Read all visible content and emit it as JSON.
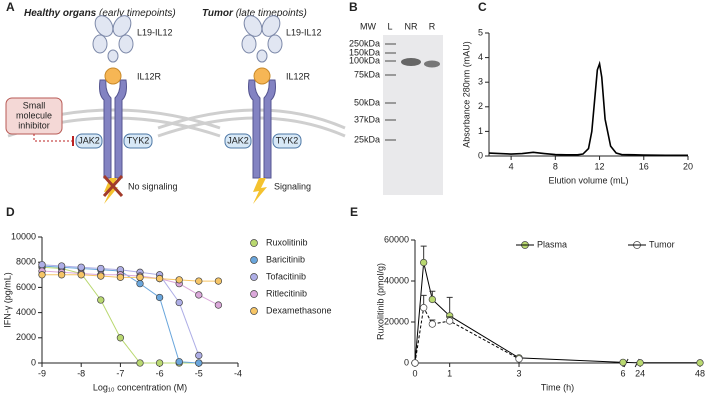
{
  "panel_labels": [
    "A",
    "B",
    "C",
    "D",
    "E"
  ],
  "diagram": {
    "left": {
      "title": "Healthy organs",
      "subtitle": "(early timepoints)",
      "ligand": "L19-IL12",
      "receptor": "IL12R",
      "inhibitor": [
        "Small",
        "molecule",
        "inhibitor"
      ],
      "kinases": [
        "JAK2",
        "TYK2"
      ],
      "outcome": "No signaling"
    },
    "right": {
      "title": "Tumor",
      "subtitle": "(late timepoints)",
      "ligand": "L19-IL12",
      "receptor": "IL12R",
      "kinases": [
        "JAK2",
        "TYK2"
      ],
      "outcome": "Signaling"
    }
  },
  "gel": {
    "mw_header": "MW",
    "lanes": [
      "L",
      "NR",
      "R"
    ],
    "markers": [
      "250kDa",
      "150kDa",
      "100kDa",
      "75kDa",
      "50kDa",
      "37kDa",
      "25kDa"
    ]
  },
  "chart_data": [
    {
      "type": "line",
      "x_label": "Elution volume (mL)",
      "y_label": "Absorbance 280nm (mAU)",
      "x": [
        2,
        3,
        4,
        5,
        6,
        7,
        8,
        9,
        10,
        10.5,
        11,
        11.3,
        11.6,
        11.8,
        12,
        12.2,
        12.5,
        13,
        13.5,
        14,
        16,
        18,
        20
      ],
      "series": [
        {
          "color": "#000000",
          "values": [
            0.12,
            0.1,
            0.08,
            0.1,
            0.15,
            0.1,
            0.06,
            0.05,
            0.05,
            0.08,
            0.3,
            1.0,
            2.5,
            3.5,
            3.75,
            3.2,
            1.5,
            0.4,
            0.12,
            0.06,
            0.04,
            0.03,
            0.03
          ]
        }
      ],
      "xlim": [
        2,
        20
      ],
      "xticks": [
        4,
        8,
        12,
        16,
        20
      ],
      "ylim": [
        0,
        5
      ],
      "yticks": [
        0,
        1,
        2,
        3,
        4,
        5
      ]
    },
    {
      "type": "line",
      "x_label": "Log₁₀ concentration (M)",
      "y_label": "IFN-γ (pg/mL)",
      "markers": true,
      "legend": "right",
      "x": [
        -9,
        -8.5,
        -8,
        -7.5,
        -7,
        -6.5,
        -6,
        -5.5,
        -5,
        -4.5
      ],
      "series": [
        {
          "name": "Ruxolitinib",
          "color": "#b9d870",
          "values": [
            7600,
            7500,
            7100,
            5000,
            2000,
            0,
            0,
            0,
            0,
            null
          ]
        },
        {
          "name": "Baricitinib",
          "color": "#6aa6dc",
          "values": [
            7700,
            7600,
            7500,
            7400,
            7300,
            6300,
            5200,
            100,
            0,
            null
          ]
        },
        {
          "name": "Tofacitinib",
          "color": "#aeaee6",
          "values": [
            7800,
            7700,
            7600,
            7500,
            7400,
            7200,
            7000,
            4800,
            600,
            null
          ]
        },
        {
          "name": "Ritlecitinib",
          "color": "#dba8da",
          "values": [
            7300,
            7200,
            7100,
            7000,
            7000,
            6900,
            6700,
            6300,
            5400,
            4600
          ]
        },
        {
          "name": "Dexamethasone",
          "color": "#f6c566",
          "values": [
            7000,
            7000,
            7000,
            6900,
            6800,
            6800,
            6700,
            6600,
            6500,
            6500
          ]
        }
      ],
      "xlim": [
        -9,
        -4
      ],
      "xticks": [
        -9,
        -8,
        -7,
        -6,
        -5,
        -4
      ],
      "ylim": [
        0,
        10000
      ],
      "yticks": [
        0,
        2000,
        4000,
        6000,
        8000,
        10000
      ]
    },
    {
      "type": "line",
      "x_label": "Time (h)",
      "y_label": "Ruxolitinib (pmol/g)",
      "markers": true,
      "legend": "top",
      "x_break": [
        6,
        24
      ],
      "x": [
        0,
        0.25,
        0.5,
        1,
        3,
        6,
        24,
        48
      ],
      "series": [
        {
          "name": "Plasma",
          "color": "#b9d870",
          "line_color": "#000000",
          "values": [
            0,
            49000,
            31000,
            23000,
            2500,
            300,
            100,
            100
          ],
          "errors": [
            0,
            8000,
            4000,
            9000,
            500,
            null,
            null,
            null
          ]
        },
        {
          "name": "Tumor",
          "color": "#ffffff",
          "line_color": "#000000",
          "dash": true,
          "values": [
            0,
            27000,
            19000,
            20500,
            2000,
            null,
            null,
            null
          ],
          "errors": [
            0,
            6000,
            2000,
            2000,
            400,
            null,
            null,
            null
          ]
        }
      ],
      "xlim": [
        0,
        48
      ],
      "xticks": [
        0,
        1,
        3,
        6,
        24,
        48
      ],
      "ylim": [
        0,
        60000
      ],
      "yticks": [
        0,
        20000,
        40000,
        60000
      ]
    }
  ]
}
